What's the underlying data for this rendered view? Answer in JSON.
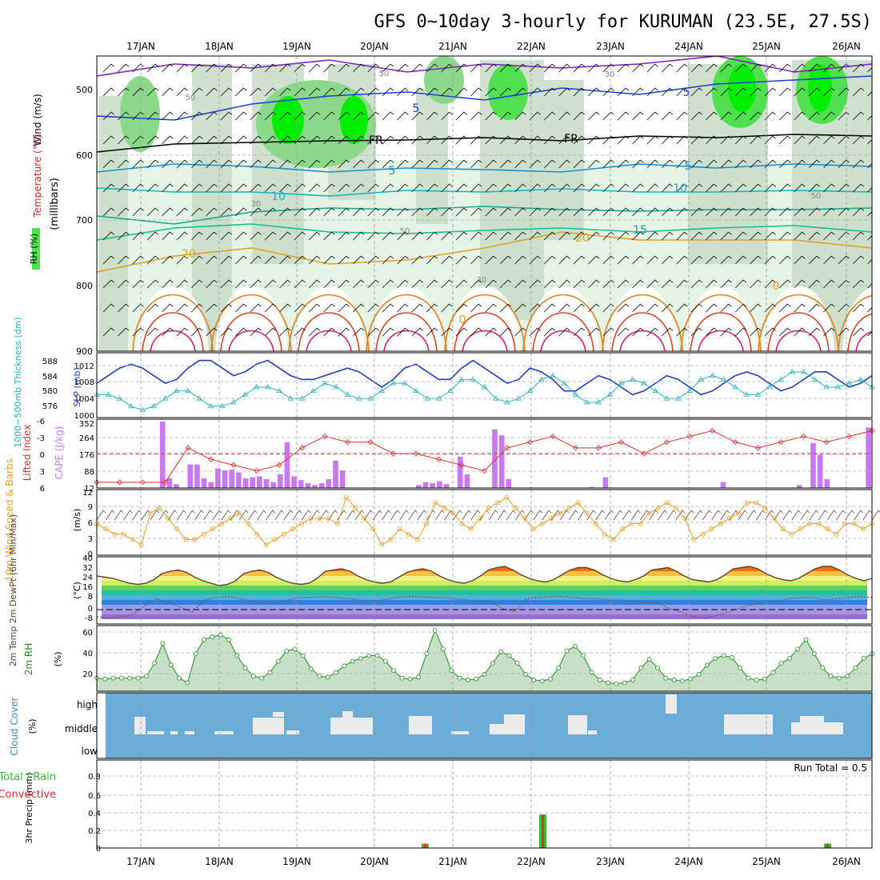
{
  "title": "GFS 0~10day 3-hourly for KURUMAN (23.5E, 27.5S)",
  "days": [
    "17JAN",
    "18JAN",
    "19JAN",
    "20JAN",
    "21JAN",
    "22JAN",
    "23JAN",
    "24JAN",
    "25JAN",
    "26JAN"
  ],
  "colors": {
    "rh_light": "#e6f4e6",
    "rh_mid": "#c8dcc8",
    "rh_dark": "#b4c8b4",
    "rh_green1": "#8cd98c",
    "rh_green2": "#50e050",
    "rh_green3": "#00ee00",
    "slp": "#1e3cc8",
    "thickness": "#28b4b4",
    "lifted": "#e03030",
    "cape": "#c878f0",
    "wind10": "#e8a020",
    "temp2m": "#604030",
    "rh2m": "#209020",
    "cloud": "#6badd6",
    "precip_total": "#30c030",
    "precip_conv": "#e03030"
  },
  "panels": {
    "upper": {
      "ylabel": "(millibars)",
      "legend_wind": "Wind (m/s)",
      "legend_temp": "Temperature (°C)",
      "legend_rh": "RH (%)",
      "yticks": [
        "500",
        "600",
        "700",
        "800",
        "900"
      ],
      "contour_labels": [
        "5",
        "5",
        "5",
        "5",
        "10",
        "10",
        "15",
        "20",
        "20",
        "FR",
        "FR",
        "50",
        "50",
        "50",
        "50",
        "30",
        "30",
        "30",
        "0",
        "0"
      ]
    },
    "slp": {
      "label_thick": "1000~500mb Thickness (dm)",
      "label_slp": "SLP (mb)",
      "thick_ticks": [
        "588",
        "584",
        "580",
        "576"
      ],
      "slp_ticks": [
        "1012",
        "1008",
        "1004",
        "1000"
      ]
    },
    "cape": {
      "label_li": "Lifted Index",
      "label_cape": "CAPE (J/kg)",
      "li_ticks": [
        "-6",
        "-3",
        "0",
        "3",
        "6"
      ],
      "cape_ticks": [
        "352",
        "264",
        "176",
        "88",
        "12"
      ]
    },
    "wind": {
      "label": "10m Wind Speed & Barbs",
      "unit": "(m/s)",
      "yticks": [
        "12",
        "9",
        "6",
        "3",
        "0"
      ]
    },
    "temp": {
      "label": "2m Temp 2m DewPt (6hr Min/Max)",
      "unit": "(°C)",
      "yticks": [
        "40",
        "32",
        "24",
        "16",
        "8",
        "0",
        "-8"
      ]
    },
    "rh": {
      "label": "2m RH",
      "unit": "(%)",
      "yticks": [
        "60",
        "40",
        "20"
      ]
    },
    "cloud": {
      "label": "Cloud Cover",
      "unit": "(%)",
      "levels": [
        "high",
        "middle",
        "low"
      ]
    },
    "precip": {
      "label_total": "Total / Rain",
      "label_conv": "Convective",
      "ylabel": "3hr Precip (mm)",
      "yticks": [
        "0.8",
        "0.6",
        "0.4",
        "0.2",
        "0"
      ],
      "run_total": "Run Total = 0.5"
    }
  },
  "chart_data": [
    {
      "type": "line",
      "panel": "slp",
      "series": [
        {
          "name": "SLP (mb)",
          "values": [
            1007,
            1009,
            1011,
            1012,
            1011,
            1009,
            1007,
            1008,
            1011,
            1013,
            1013,
            1011,
            1009,
            1010,
            1012,
            1013,
            1011,
            1009,
            1008,
            1008,
            1009,
            1010,
            1011,
            1010,
            1008,
            1006,
            1008,
            1011,
            1012,
            1010,
            1008,
            1008,
            1011,
            1013,
            1011,
            1009,
            1007,
            1008,
            1011,
            1010,
            1008,
            1005,
            1005,
            1007,
            1009,
            1008,
            1006,
            1004,
            1005,
            1007,
            1009,
            1008,
            1006,
            1004,
            1005,
            1007,
            1009,
            1010,
            1009,
            1007,
            1005,
            1006,
            1008,
            1010,
            1010,
            1008,
            1006,
            1007,
            1009
          ]
        },
        {
          "name": "1000~500mb Thickness (dm)",
          "values": [
            579,
            579,
            578,
            576,
            575,
            576,
            578,
            580,
            580,
            578,
            576,
            576,
            577,
            579,
            581,
            581,
            580,
            578,
            578,
            580,
            582,
            581,
            579,
            578,
            578,
            580,
            582,
            582,
            580,
            578,
            578,
            580,
            583,
            583,
            581,
            578,
            577,
            578,
            580,
            583,
            584,
            582,
            579,
            577,
            577,
            579,
            582,
            583,
            582,
            580,
            578,
            578,
            580,
            583,
            584,
            583,
            581,
            579,
            579,
            581,
            583,
            585,
            585,
            583,
            581,
            581,
            582,
            583,
            581
          ]
        }
      ]
    },
    {
      "type": "bar",
      "panel": "cape",
      "series": [
        {
          "name": "CAPE (J/kg)",
          "values": [
            0,
            0,
            0,
            0,
            0,
            0,
            0,
            0,
            0,
            340,
            50,
            20,
            0,
            120,
            120,
            50,
            30,
            100,
            90,
            95,
            80,
            50,
            55,
            60,
            45,
            30,
            70,
            235,
            60,
            40,
            25,
            15,
            25,
            45,
            140,
            90,
            0,
            0,
            0,
            0,
            0,
            0,
            0,
            0,
            0,
            0,
            15,
            30,
            25,
            35,
            20,
            0,
            160,
            70,
            0,
            0,
            0,
            300,
            270,
            45,
            0,
            0,
            0,
            0,
            0,
            0,
            0,
            0,
            0,
            0,
            0,
            5,
            0,
            55,
            0,
            0,
            0,
            0,
            0,
            0,
            0,
            0,
            0,
            0,
            0,
            0,
            0,
            0,
            0,
            0,
            30,
            0,
            0,
            0,
            0,
            0,
            0,
            0,
            0,
            0,
            0,
            15,
            0,
            230,
            170,
            45,
            0,
            0,
            0,
            0,
            0,
            310
          ]
        },
        {
          "name": "Lifted Index",
          "values": [
            5,
            5,
            5,
            5,
            -1,
            1,
            2,
            3,
            2,
            -1,
            -3,
            -2,
            -2,
            0,
            0,
            1,
            2,
            3,
            -1,
            -2,
            -3,
            -1,
            -1,
            -2,
            0,
            -2,
            -3,
            -4,
            -2,
            -1,
            -2,
            -3,
            -2,
            -3,
            -4
          ]
        }
      ]
    },
    {
      "type": "line",
      "panel": "wind10",
      "series": [
        {
          "name": "10m Wind Speed",
          "values": [
            6,
            5,
            4,
            4,
            3,
            2,
            8,
            9,
            7,
            5,
            3,
            3,
            4,
            5,
            6,
            7,
            8,
            6,
            4,
            2,
            3,
            4,
            5,
            6,
            7,
            7,
            7,
            6,
            11,
            9,
            7,
            5,
            2,
            3,
            5,
            4,
            3,
            6,
            10,
            9,
            8,
            6,
            5,
            7,
            9,
            10,
            11,
            9,
            7,
            5,
            6,
            7,
            8,
            9,
            10,
            8,
            6,
            4,
            3,
            5,
            6,
            6,
            8,
            9,
            10,
            9,
            7,
            3,
            4,
            5,
            6,
            7,
            8,
            10,
            10,
            9,
            7,
            5,
            4,
            5,
            6,
            6,
            5,
            4,
            6,
            6,
            5,
            6
          ]
        }
      ]
    },
    {
      "type": "area",
      "panel": "temp2m",
      "series": [
        {
          "name": "2m Temp (°C)",
          "values": [
            28,
            27,
            26,
            24,
            22,
            21,
            22,
            25,
            30,
            32,
            33,
            31,
            27,
            24,
            22,
            20,
            21,
            24,
            30,
            32,
            33,
            31,
            27,
            24,
            22,
            21,
            22,
            26,
            32,
            33,
            34,
            32,
            28,
            25,
            23,
            22,
            23,
            27,
            31,
            33,
            34,
            32,
            28,
            25,
            23,
            22,
            24,
            28,
            33,
            35,
            36,
            33,
            29,
            26,
            24,
            23,
            25,
            29,
            33,
            35,
            35,
            33,
            29,
            26,
            24,
            23,
            25,
            28,
            33,
            34,
            35,
            32,
            28,
            25,
            24,
            23,
            25,
            29,
            34,
            35,
            36,
            34,
            30,
            27,
            25,
            24,
            26,
            30,
            34,
            36,
            36,
            33,
            29,
            26,
            24,
            26
          ]
        },
        {
          "name": "2m DewPt (°C)",
          "values": [
            -6,
            -7,
            -6,
            -4,
            3,
            9,
            6,
            2,
            -2,
            8,
            10,
            11,
            9,
            7,
            5,
            6,
            8,
            10,
            10,
            11,
            10,
            9,
            8,
            7,
            8,
            10,
            11,
            11,
            10,
            10,
            9,
            8,
            7,
            7,
            1,
            -2,
            9,
            10,
            11,
            11,
            10,
            9,
            9,
            8,
            8,
            7,
            6,
            6,
            1,
            -2,
            -6,
            -7,
            -5,
            -2,
            2,
            4,
            6,
            7,
            9,
            10,
            10,
            8,
            9,
            10,
            11,
            10
          ]
        }
      ]
    },
    {
      "type": "area",
      "panel": "rh2m",
      "series": [
        {
          "name": "2m RH (%)",
          "values": [
            14,
            13,
            14,
            14,
            14,
            14,
            16,
            30,
            51,
            28,
            14,
            9,
            40,
            55,
            58,
            60,
            55,
            38,
            25,
            16,
            14,
            20,
            32,
            43,
            45,
            38,
            24,
            16,
            15,
            20,
            27,
            32,
            35,
            38,
            38,
            32,
            22,
            14,
            13,
            15,
            40,
            65,
            45,
            22,
            14,
            12,
            13,
            18,
            30,
            42,
            38,
            30,
            18,
            12,
            11,
            13,
            25,
            43,
            48,
            38,
            20,
            12,
            9,
            8,
            9,
            12,
            25,
            34,
            25,
            14,
            12,
            11,
            13,
            18,
            28,
            35,
            38,
            36,
            25,
            14,
            12,
            13,
            20,
            30,
            35,
            45,
            55,
            40,
            25,
            16,
            14,
            16,
            25,
            35,
            40
          ]
        }
      ]
    },
    {
      "type": "bar",
      "panel": "precip",
      "categories": [
        "20JAN~21JAN",
        "22JAN",
        "25JAN~26JAN"
      ],
      "series": [
        {
          "name": "Total / Rain",
          "values": [
            0.05,
            0.38,
            0.05
          ]
        },
        {
          "name": "Convective",
          "values": [
            0.05,
            0.38,
            0.05
          ]
        }
      ]
    }
  ]
}
